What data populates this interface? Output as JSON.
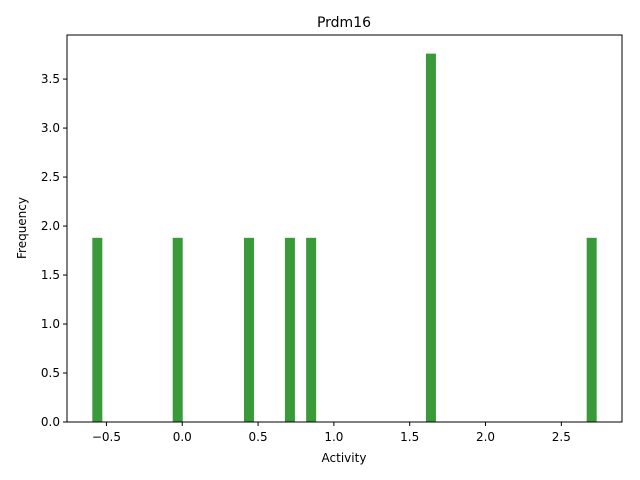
{
  "chart_data": {
    "type": "bar",
    "title": "Prdm16",
    "xlabel": "Activity",
    "ylabel": "Frequency",
    "xlim": [
      -0.76,
      2.9
    ],
    "ylim": [
      0,
      3.95
    ],
    "bar_width": 0.066,
    "bars": [
      {
        "x": -0.56,
        "value": 1.88
      },
      {
        "x": -0.03,
        "value": 1.88
      },
      {
        "x": 0.44,
        "value": 1.88
      },
      {
        "x": 0.71,
        "value": 1.88
      },
      {
        "x": 0.85,
        "value": 1.88
      },
      {
        "x": 1.64,
        "value": 3.76
      },
      {
        "x": 2.7,
        "value": 1.88
      }
    ],
    "xticks": [
      -0.5,
      0.0,
      0.5,
      1.0,
      1.5,
      2.0,
      2.5
    ],
    "xtick_labels": [
      "−0.5",
      "0.0",
      "0.5",
      "1.0",
      "1.5",
      "2.0",
      "2.5"
    ],
    "yticks": [
      0.0,
      0.5,
      1.0,
      1.5,
      2.0,
      2.5,
      3.0,
      3.5
    ],
    "ytick_labels": [
      "0.0",
      "0.5",
      "1.0",
      "1.5",
      "2.0",
      "2.5",
      "3.0",
      "3.5"
    ],
    "bar_color": "#3a9a3a",
    "grid": false,
    "legend": "none"
  }
}
